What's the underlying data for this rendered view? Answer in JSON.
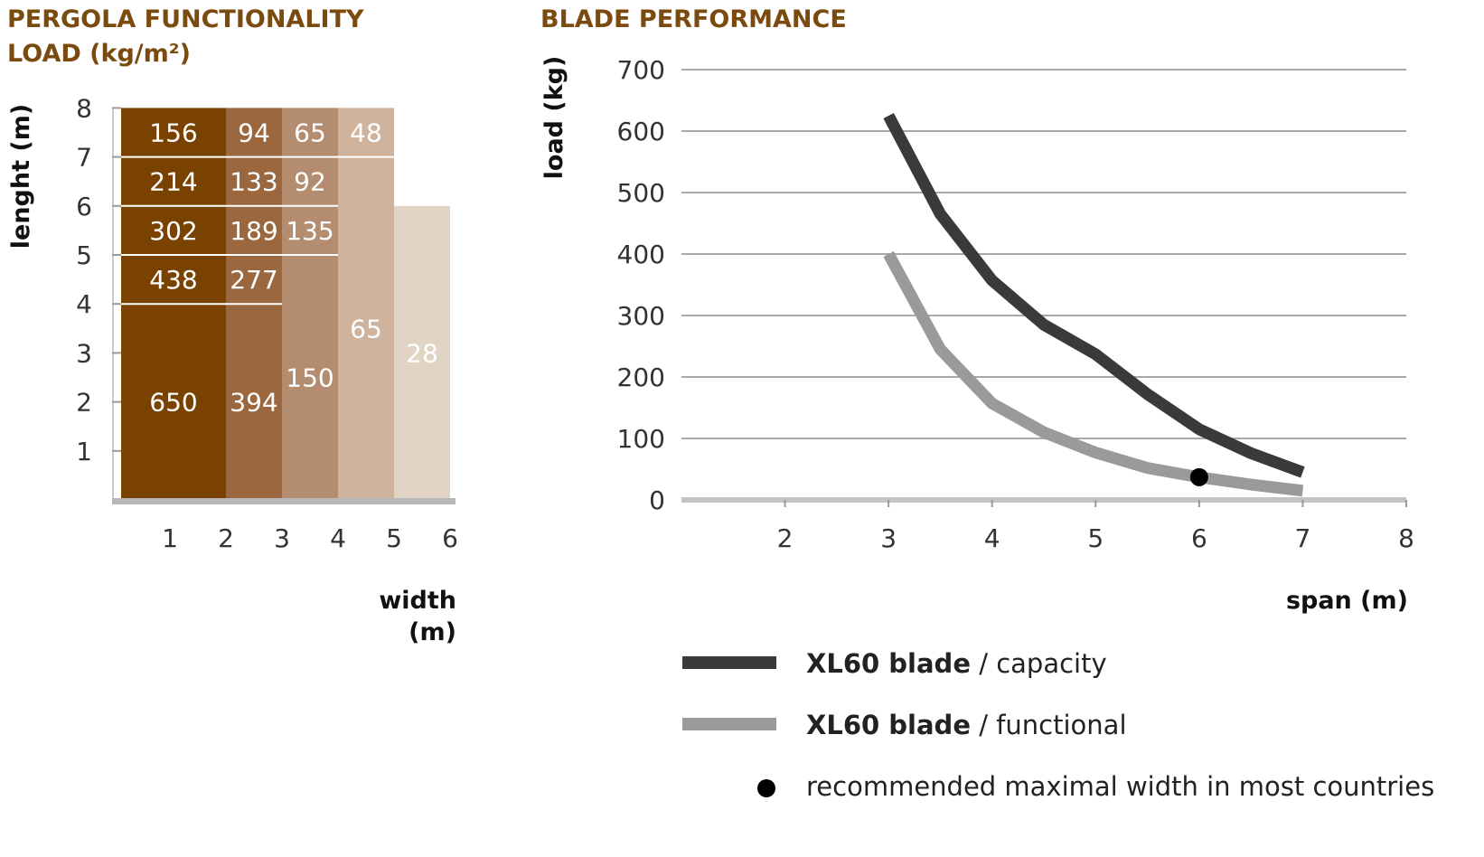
{
  "left_title_line1": "PERGOLA FUNCTIONALITY",
  "left_title_line2": "LOAD (kg/m²)",
  "right_title": "BLADE PERFORMANCE",
  "left_ylabel": "lenght (m)",
  "left_xlabel_line1": "width",
  "left_xlabel_line2": "(m)",
  "right_ylabel": "load (kg)",
  "right_xlabel": "span (m)",
  "legend": {
    "capacity_bold": "XL60 blade",
    "capacity_rest": " / capacity",
    "functional_bold": "XL60 blade",
    "functional_rest": " / functional",
    "marker_text": "recommended maximal width in most countries"
  },
  "colors": {
    "col1": "#7a4200",
    "col2": "#9a673e",
    "col3": "#b48d70",
    "col4": "#d0b39d",
    "col5": "#e2d4c5",
    "capacity": "#3a3a3a",
    "functional": "#9a9a9a"
  },
  "chart_data": [
    {
      "type": "heatmap",
      "title": "PERGOLA FUNCTIONALITY LOAD (kg/m²)",
      "xlabel": "width (m)",
      "ylabel": "lenght (m)",
      "x_ticks": [
        1,
        2,
        3,
        4,
        5,
        6
      ],
      "y_ticks": [
        1,
        2,
        3,
        4,
        5,
        6,
        7,
        8
      ],
      "xlim": [
        0,
        6
      ],
      "ylim": [
        0,
        8
      ],
      "columns": [
        {
          "x_range": [
            0,
            2
          ],
          "color_key": "col1",
          "cells": [
            {
              "y_range": [
                0,
                4
              ],
              "value": 650
            },
            {
              "y_range": [
                4,
                5
              ],
              "value": 438
            },
            {
              "y_range": [
                5,
                6
              ],
              "value": 302
            },
            {
              "y_range": [
                6,
                7
              ],
              "value": 214
            },
            {
              "y_range": [
                7,
                8
              ],
              "value": 156
            }
          ]
        },
        {
          "x_range": [
            2,
            3
          ],
          "color_key": "col2",
          "cells": [
            {
              "y_range": [
                0,
                4
              ],
              "value": 394
            },
            {
              "y_range": [
                4,
                5
              ],
              "value": 277
            },
            {
              "y_range": [
                5,
                6
              ],
              "value": 189
            },
            {
              "y_range": [
                6,
                7
              ],
              "value": 133
            },
            {
              "y_range": [
                7,
                8
              ],
              "value": 94
            }
          ]
        },
        {
          "x_range": [
            3,
            4
          ],
          "color_key": "col3",
          "cells": [
            {
              "y_range": [
                0,
                5
              ],
              "value": 150
            },
            {
              "y_range": [
                5,
                6
              ],
              "value": 135
            },
            {
              "y_range": [
                6,
                7
              ],
              "value": 92
            },
            {
              "y_range": [
                7,
                8
              ],
              "value": 65
            }
          ]
        },
        {
          "x_range": [
            4,
            5
          ],
          "color_key": "col4",
          "cells": [
            {
              "y_range": [
                0,
                7
              ],
              "value": 65
            },
            {
              "y_range": [
                7,
                8
              ],
              "value": 48
            }
          ]
        },
        {
          "x_range": [
            5,
            6
          ],
          "color_key": "col5",
          "cells": [
            {
              "y_range": [
                0,
                6
              ],
              "value": 28
            }
          ]
        }
      ]
    },
    {
      "type": "line",
      "title": "BLADE PERFORMANCE",
      "xlabel": "span (m)",
      "ylabel": "load (kg)",
      "x_ticks": [
        2,
        3,
        4,
        5,
        6,
        7,
        8
      ],
      "y_ticks": [
        0,
        100,
        200,
        300,
        400,
        500,
        600,
        700
      ],
      "xlim": [
        1,
        8
      ],
      "ylim": [
        0,
        700
      ],
      "grid": true,
      "legend_position": "bottom",
      "series": [
        {
          "name": "XL60 blade / capacity",
          "color_key": "capacity",
          "x": [
            3,
            3.5,
            4,
            4.5,
            5,
            5.5,
            6,
            6.5,
            7
          ],
          "y": [
            625,
            465,
            357,
            285,
            237,
            172,
            115,
            76,
            45
          ]
        },
        {
          "name": "XL60 blade / functional",
          "color_key": "functional",
          "x": [
            3,
            3.5,
            4,
            4.5,
            5,
            5.5,
            6,
            6.5,
            7
          ],
          "y": [
            400,
            245,
            157,
            110,
            77,
            52,
            37,
            25,
            15
          ]
        }
      ],
      "marker": {
        "name": "recommended maximal width in most countries",
        "x": 6,
        "y": 37
      }
    }
  ]
}
